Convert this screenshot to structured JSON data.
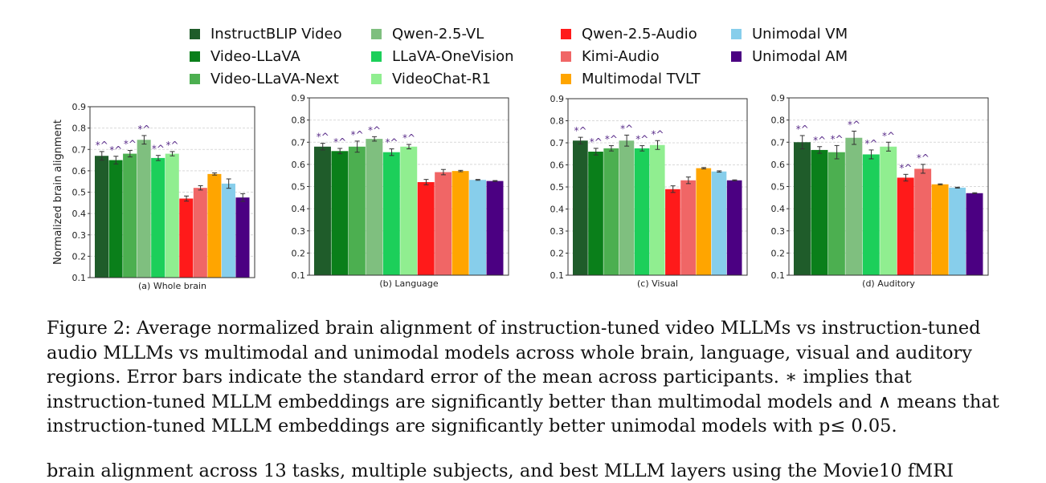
{
  "legend": [
    {
      "name": "InstructBLIP Video",
      "color": "#1f5c2a"
    },
    {
      "name": "Video-LLaVA",
      "color": "#0a7f1a"
    },
    {
      "name": "Video-LLaVA-Next",
      "color": "#4caf50"
    },
    {
      "name": "Qwen-2.5-VL",
      "color": "#7fbf7f"
    },
    {
      "name": "LLaVA-OneVision",
      "color": "#1ccf5a"
    },
    {
      "name": "VideoChat-R1",
      "color": "#90ee90"
    },
    {
      "name": "Qwen-2.5-Audio",
      "color": "#ff1a1a"
    },
    {
      "name": "Kimi-Audio",
      "color": "#f06666"
    },
    {
      "name": "Multimodal TVLT",
      "color": "#ffa500"
    },
    {
      "name": "Unimodal VM",
      "color": "#87ceeb"
    },
    {
      "name": "Unimodal AM",
      "color": "#4b0082"
    }
  ],
  "sig_color": "#5a2d8a",
  "chart_data": [
    {
      "type": "bar",
      "title": "(a) Whole brain",
      "ylabel": "Normalized brain alignment",
      "ylim": [
        0.1,
        0.9
      ],
      "yticks": [
        "0.1",
        "0.2",
        "0.3",
        "0.4",
        "0.5",
        "0.6",
        "0.7",
        "0.8",
        "0.9"
      ],
      "categories": [
        "InstructBLIP Video",
        "Video-LLaVA",
        "Video-LLaVA-Next",
        "Qwen-2.5-VL",
        "LLaVA-OneVision",
        "VideoChat-R1",
        "Qwen-2.5-Audio",
        "Kimi-Audio",
        "Multimodal TVLT",
        "Unimodal VM",
        "Unimodal AM"
      ],
      "values": [
        0.67,
        0.65,
        0.68,
        0.745,
        0.66,
        0.68,
        0.47,
        0.52,
        0.585,
        0.54,
        0.475
      ],
      "errors": [
        0.02,
        0.018,
        0.015,
        0.02,
        0.012,
        0.01,
        0.012,
        0.01,
        0.005,
        0.022,
        0.018
      ],
      "sig": [
        "*^",
        "*^",
        "*^",
        "*^",
        "*^",
        "*^",
        "",
        "",
        "",
        "",
        ""
      ]
    },
    {
      "type": "bar",
      "title": "(b) Language",
      "ylabel": "",
      "ylim": [
        0.1,
        0.9
      ],
      "yticks": [
        "0.1",
        "0.2",
        "0.3",
        "0.4",
        "0.5",
        "0.6",
        "0.7",
        "0.8",
        "0.9"
      ],
      "categories": [
        "InstructBLIP Video",
        "Video-LLaVA",
        "Video-LLaVA-Next",
        "Qwen-2.5-VL",
        "LLaVA-OneVision",
        "VideoChat-R1",
        "Qwen-2.5-Audio",
        "Kimi-Audio",
        "Multimodal TVLT",
        "Unimodal VM",
        "Unimodal AM"
      ],
      "values": [
        0.68,
        0.66,
        0.68,
        0.715,
        0.655,
        0.68,
        0.52,
        0.565,
        0.57,
        0.53,
        0.525
      ],
      "errors": [
        0.015,
        0.012,
        0.025,
        0.01,
        0.015,
        0.01,
        0.012,
        0.012,
        0.003,
        0.002,
        0.002
      ],
      "sig": [
        "*^",
        "*^",
        "*^",
        "*^",
        "*^",
        "*^",
        "",
        "",
        "",
        "",
        ""
      ]
    },
    {
      "type": "bar",
      "title": "(c) Visual",
      "ylabel": "",
      "ylim": [
        0.1,
        0.9
      ],
      "yticks": [
        "0.1",
        "0.2",
        "0.3",
        "0.4",
        "0.5",
        "0.6",
        "0.7",
        "0.8",
        "0.9"
      ],
      "categories": [
        "InstructBLIP Video",
        "Video-LLaVA",
        "Video-LLaVA-Next",
        "Qwen-2.5-VL",
        "LLaVA-OneVision",
        "VideoChat-R1",
        "Qwen-2.5-Audio",
        "Kimi-Audio",
        "Multimodal TVLT",
        "Unimodal VM",
        "Unimodal AM"
      ],
      "values": [
        0.71,
        0.66,
        0.675,
        0.71,
        0.675,
        0.69,
        0.49,
        0.53,
        0.585,
        0.57,
        0.53
      ],
      "errors": [
        0.015,
        0.015,
        0.012,
        0.025,
        0.012,
        0.02,
        0.015,
        0.015,
        0.003,
        0.003,
        0.002
      ],
      "sig": [
        "*^",
        "*^",
        "*^",
        "*^",
        "*^",
        "*^",
        "",
        "",
        "",
        "",
        ""
      ]
    },
    {
      "type": "bar",
      "title": "(d) Auditory",
      "ylabel": "",
      "ylim": [
        0.1,
        0.9
      ],
      "yticks": [
        "0.1",
        "0.2",
        "0.3",
        "0.4",
        "0.5",
        "0.6",
        "0.7",
        "0.8",
        "0.9"
      ],
      "categories": [
        "InstructBLIP Video",
        "Video-LLaVA",
        "Video-LLaVA-Next",
        "Qwen-2.5-VL",
        "LLaVA-OneVision",
        "VideoChat-R1",
        "Qwen-2.5-Audio",
        "Kimi-Audio",
        "Multimodal TVLT",
        "Unimodal VM",
        "Unimodal AM"
      ],
      "values": [
        0.7,
        0.665,
        0.655,
        0.72,
        0.645,
        0.68,
        0.54,
        0.58,
        0.51,
        0.495,
        0.47
      ],
      "errors": [
        0.03,
        0.015,
        0.03,
        0.03,
        0.02,
        0.02,
        0.015,
        0.02,
        0.002,
        0.002,
        0.002
      ],
      "sig": [
        "*^",
        "*^",
        "*^",
        "*^",
        "*^",
        "*^",
        "*^",
        "*^",
        "",
        "",
        ""
      ]
    }
  ],
  "caption": {
    "label": "Figure 2:",
    "text": "Average normalized brain alignment of instruction-tuned video MLLMs vs instruction-tuned audio MLLMs vs multimodal and unimodal models across whole brain, language, visual and auditory regions. Error bars indicate the standard error of the mean across participants. ∗ implies that instruction-tuned MLLM embeddings are significantly better than multimodal models and ∧ means that instruction-tuned MLLM embeddings are significantly better unimodal models with p≤ 0.05."
  },
  "next_line": "brain alignment across 13 tasks, multiple subjects, and best MLLM layers using the Movie10 fMRI"
}
